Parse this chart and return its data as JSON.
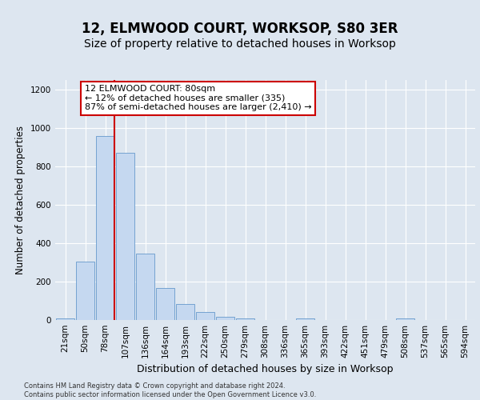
{
  "title": "12, ELMWOOD COURT, WORKSOP, S80 3ER",
  "subtitle": "Size of property relative to detached houses in Worksop",
  "xlabel": "Distribution of detached houses by size in Worksop",
  "ylabel": "Number of detached properties",
  "categories": [
    "21sqm",
    "50sqm",
    "78sqm",
    "107sqm",
    "136sqm",
    "164sqm",
    "193sqm",
    "222sqm",
    "250sqm",
    "279sqm",
    "308sqm",
    "336sqm",
    "365sqm",
    "393sqm",
    "422sqm",
    "451sqm",
    "479sqm",
    "508sqm",
    "537sqm",
    "565sqm",
    "594sqm"
  ],
  "values": [
    10,
    305,
    960,
    870,
    345,
    165,
    85,
    40,
    15,
    10,
    0,
    0,
    10,
    0,
    0,
    0,
    0,
    10,
    0,
    0,
    0
  ],
  "bar_color": "#c5d8f0",
  "bar_edge_color": "#6699cc",
  "property_line_index": 2,
  "property_line_color": "#cc0000",
  "annotation_line1": "12 ELMWOOD COURT: 80sqm",
  "annotation_line2": "← 12% of detached houses are smaller (335)",
  "annotation_line3": "87% of semi-detached houses are larger (2,410) →",
  "annotation_box_color": "#ffffff",
  "annotation_box_edge_color": "#cc0000",
  "ylim": [
    0,
    1250
  ],
  "yticks": [
    0,
    200,
    400,
    600,
    800,
    1000,
    1200
  ],
  "background_color": "#dde6f0",
  "plot_bg_color": "#dde6f0",
  "footer_line1": "Contains HM Land Registry data © Crown copyright and database right 2024.",
  "footer_line2": "Contains public sector information licensed under the Open Government Licence v3.0.",
  "title_fontsize": 12,
  "subtitle_fontsize": 10,
  "xlabel_fontsize": 9,
  "ylabel_fontsize": 8.5,
  "tick_fontsize": 7.5,
  "annotation_fontsize": 8
}
